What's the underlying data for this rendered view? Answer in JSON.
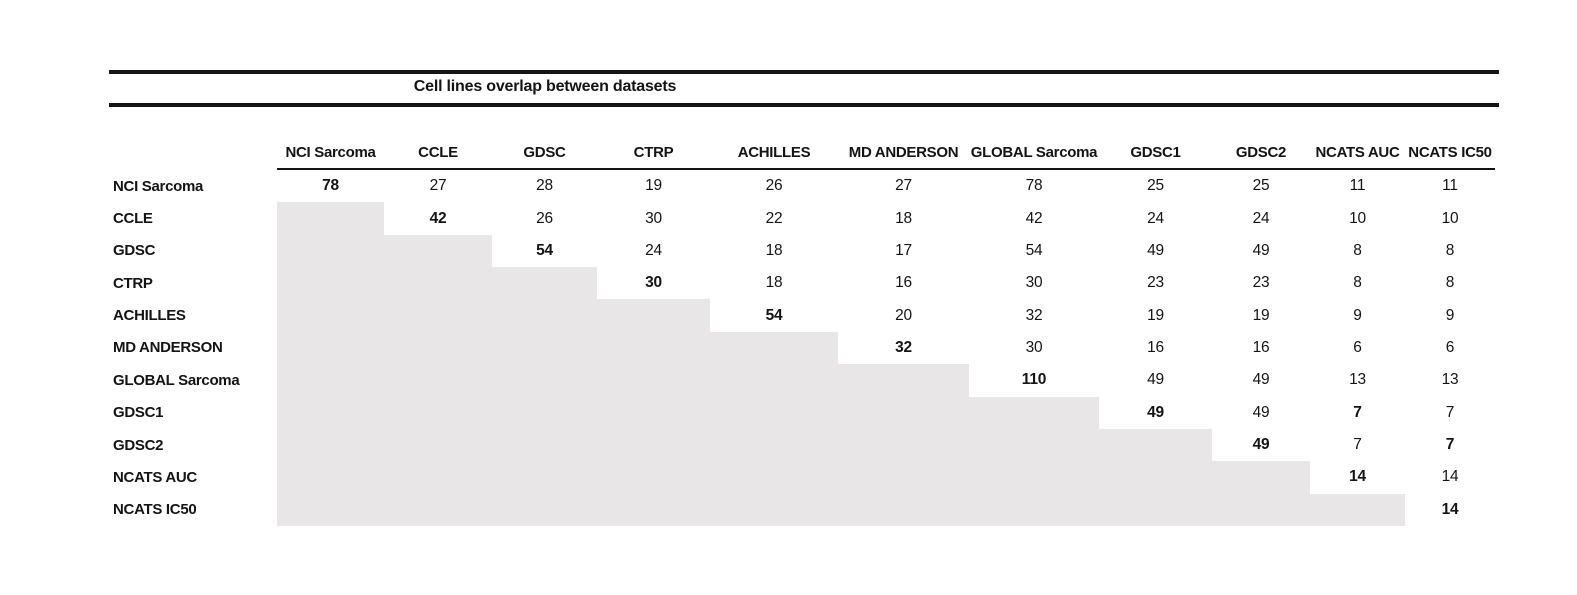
{
  "title": "Cell lines overlap between datasets",
  "colors": {
    "shade": "#e8e6e7",
    "rule": "#141414",
    "text": "#141414",
    "background": "#ffffff"
  },
  "columns": [
    "NCI Sarcoma",
    "CCLE",
    "GDSC",
    "CTRP",
    "ACHILLES",
    "MD ANDERSON",
    "GLOBAL Sarcoma",
    "GDSC1",
    "GDSC2",
    "NCATS AUC",
    "NCATS IC50"
  ],
  "rows": [
    {
      "label": "NCI Sarcoma",
      "values": [
        "78",
        "27",
        "28",
        "19",
        "26",
        "27",
        "78",
        "25",
        "25",
        "11",
        "11"
      ],
      "bold_cols": [
        0
      ]
    },
    {
      "label": "CCLE",
      "values": [
        null,
        "42",
        "26",
        "30",
        "22",
        "18",
        "42",
        "24",
        "24",
        "10",
        "10"
      ],
      "bold_cols": [
        1
      ]
    },
    {
      "label": "GDSC",
      "values": [
        null,
        null,
        "54",
        "24",
        "18",
        "17",
        "54",
        "49",
        "49",
        "8",
        "8"
      ],
      "bold_cols": [
        2
      ]
    },
    {
      "label": "CTRP",
      "values": [
        null,
        null,
        null,
        "30",
        "18",
        "16",
        "30",
        "23",
        "23",
        "8",
        "8"
      ],
      "bold_cols": [
        3
      ]
    },
    {
      "label": "ACHILLES",
      "values": [
        null,
        null,
        null,
        null,
        "54",
        "20",
        "32",
        "19",
        "19",
        "9",
        "9"
      ],
      "bold_cols": [
        4
      ]
    },
    {
      "label": "MD ANDERSON",
      "values": [
        null,
        null,
        null,
        null,
        null,
        "32",
        "30",
        "16",
        "16",
        "6",
        "6"
      ],
      "bold_cols": [
        5
      ]
    },
    {
      "label": "GLOBAL Sarcoma",
      "values": [
        null,
        null,
        null,
        null,
        null,
        null,
        "110",
        "49",
        "49",
        "13",
        "13"
      ],
      "bold_cols": [
        6
      ]
    },
    {
      "label": "GDSC1",
      "values": [
        null,
        null,
        null,
        null,
        null,
        null,
        null,
        "49",
        "49",
        "7",
        "7"
      ],
      "bold_cols": [
        7,
        9
      ]
    },
    {
      "label": "GDSC2",
      "values": [
        null,
        null,
        null,
        null,
        null,
        null,
        null,
        null,
        "49",
        "7",
        "7"
      ],
      "bold_cols": [
        8,
        10
      ]
    },
    {
      "label": "NCATS AUC",
      "values": [
        null,
        null,
        null,
        null,
        null,
        null,
        null,
        null,
        null,
        "14",
        "14"
      ],
      "bold_cols": [
        9
      ]
    },
    {
      "label": "NCATS IC50",
      "values": [
        null,
        null,
        null,
        null,
        null,
        null,
        null,
        null,
        null,
        null,
        "14"
      ],
      "bold_cols": [
        10
      ]
    }
  ],
  "chart_data": {
    "type": "table",
    "title": "Cell lines overlap between datasets",
    "columns": [
      "NCI Sarcoma",
      "CCLE",
      "GDSC",
      "CTRP",
      "ACHILLES",
      "MD ANDERSON",
      "GLOBAL Sarcoma",
      "GDSC1",
      "GDSC2",
      "NCATS AUC",
      "NCATS IC50"
    ],
    "row_labels": [
      "NCI Sarcoma",
      "CCLE",
      "GDSC",
      "CTRP",
      "ACHILLES",
      "MD ANDERSON",
      "GLOBAL Sarcoma",
      "GDSC1",
      "GDSC2",
      "NCATS AUC",
      "NCATS IC50"
    ],
    "matrix": [
      [
        78,
        27,
        28,
        19,
        26,
        27,
        78,
        25,
        25,
        11,
        11
      ],
      [
        null,
        42,
        26,
        30,
        22,
        18,
        42,
        24,
        24,
        10,
        10
      ],
      [
        null,
        null,
        54,
        24,
        18,
        17,
        54,
        49,
        49,
        8,
        8
      ],
      [
        null,
        null,
        null,
        30,
        18,
        16,
        30,
        23,
        23,
        8,
        8
      ],
      [
        null,
        null,
        null,
        null,
        54,
        20,
        32,
        19,
        19,
        9,
        9
      ],
      [
        null,
        null,
        null,
        null,
        null,
        32,
        30,
        16,
        16,
        6,
        6
      ],
      [
        null,
        null,
        null,
        null,
        null,
        null,
        110,
        49,
        49,
        13,
        13
      ],
      [
        null,
        null,
        null,
        null,
        null,
        null,
        null,
        49,
        49,
        7,
        7
      ],
      [
        null,
        null,
        null,
        null,
        null,
        null,
        null,
        null,
        49,
        7,
        7
      ],
      [
        null,
        null,
        null,
        null,
        null,
        null,
        null,
        null,
        null,
        14,
        14
      ],
      [
        null,
        null,
        null,
        null,
        null,
        null,
        null,
        null,
        null,
        null,
        14
      ]
    ],
    "layout": "upper-triangular matrix; lower triangle shaded gray; diagonal values bold",
    "legend_position": "none",
    "grid": false
  }
}
